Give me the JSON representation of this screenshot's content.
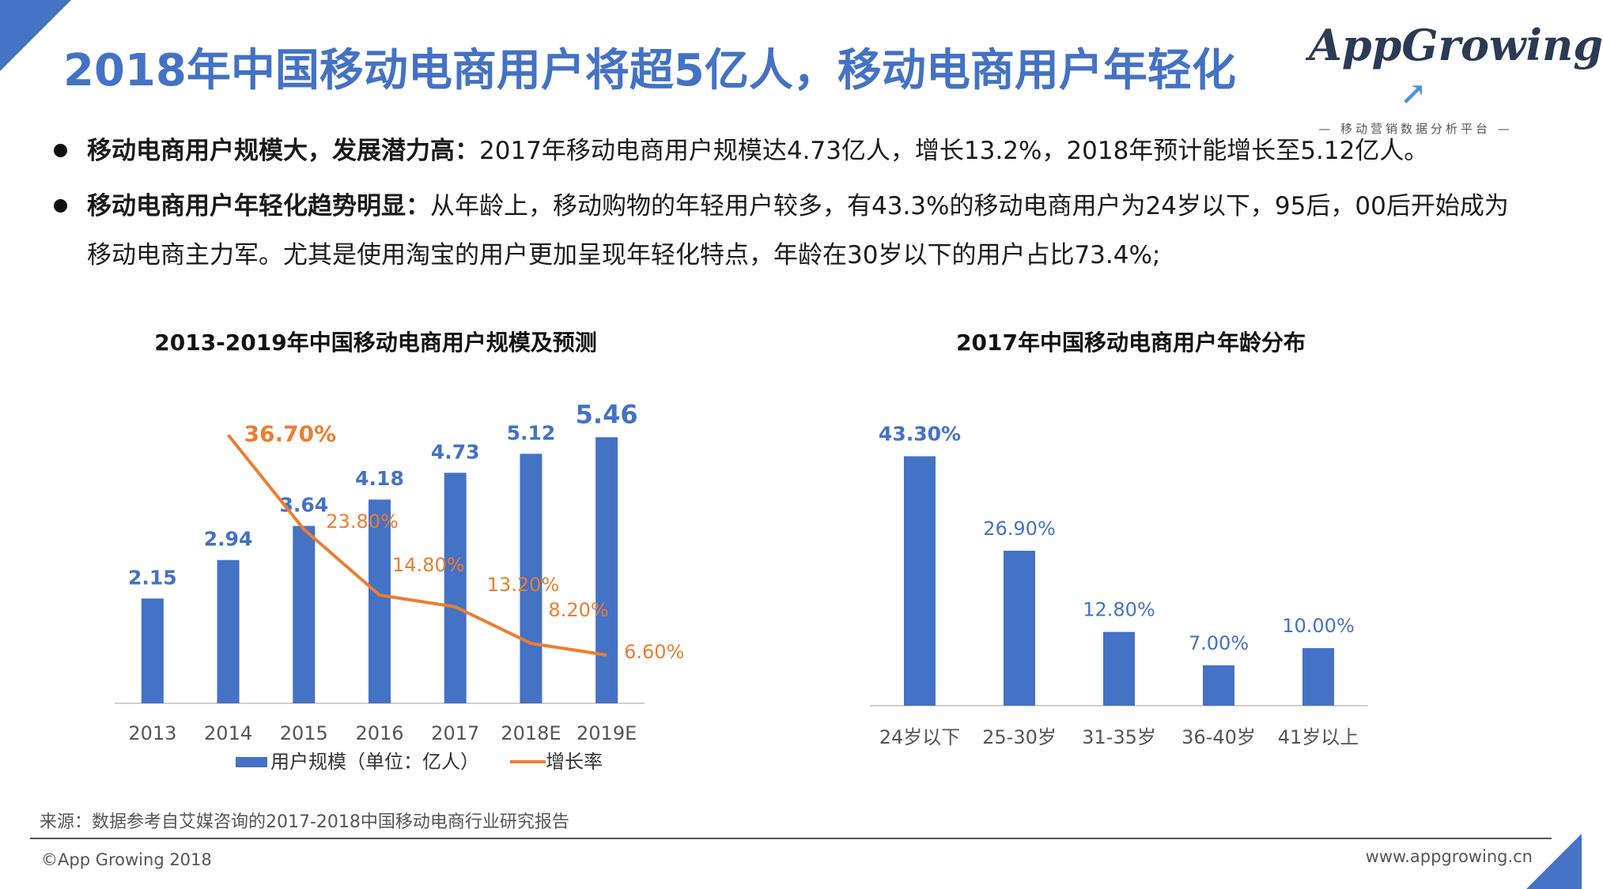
{
  "header": {
    "title": "2018年中国移动电商用户将超5亿人，移动电商用户年轻化",
    "logo_text": "AppGrowing",
    "logo_sub": "— 移动营销数据分析平台 —"
  },
  "bullets": [
    {
      "bold": "移动电商用户规模大，发展潜力高：",
      "text": "2017年移动电商用户规模达4.73亿人，增长13.2%，2018年预计能增长至5.12亿人。"
    },
    {
      "bold": "移动电商用户年轻化趋势明显：",
      "text": "从年龄上，移动购物的年轻用户较多，有43.3%的移动电商用户为24岁以下，95后，00后开始成为移动电商主力军。尤其是使用淘宝的用户更加呈现年轻化特点，年龄在30岁以下的用户占比73.4%;"
    }
  ],
  "chart_data": [
    {
      "type": "bar",
      "title": "2013-2019年中国移动电商用户规模及预测",
      "categories": [
        "2013",
        "2014",
        "2015",
        "2016",
        "2017",
        "2018E",
        "2019E"
      ],
      "series": [
        {
          "name": "用户规模（单位：亿人）",
          "type": "bar",
          "values": [
            2.15,
            2.94,
            3.64,
            4.18,
            4.73,
            5.12,
            5.46
          ],
          "labels": [
            "2.15",
            "2.94",
            "3.64",
            "4.18",
            "4.73",
            "5.12",
            "5.46"
          ],
          "color": "#4472c4"
        },
        {
          "name": "增长率",
          "type": "line",
          "values": [
            null,
            36.7,
            23.8,
            14.8,
            13.2,
            8.2,
            6.6
          ],
          "labels": [
            null,
            "36.70%",
            "23.80%",
            "14.80%",
            "13.20%",
            "8.20%",
            "6.60%"
          ],
          "color": "#ed7d31"
        }
      ],
      "ylim": [
        0,
        6
      ],
      "y2lim": [
        0,
        40
      ],
      "grid": false,
      "legend": "bottom"
    },
    {
      "type": "bar",
      "title": "2017年中国移动电商用户年龄分布",
      "categories": [
        "24岁以下",
        "25-30岁",
        "31-35岁",
        "36-40岁",
        "41岁以上"
      ],
      "values": [
        43.3,
        26.9,
        12.8,
        7.0,
        10.0
      ],
      "labels": [
        "43.30%",
        "26.90%",
        "12.80%",
        "7.00%",
        "10.00%"
      ],
      "ylim": [
        0,
        45
      ],
      "color": "#4472c4",
      "grid": false
    }
  ],
  "footer": {
    "source": "来源：数据参考自艾媒咨询的2017-2018中国移动电商行业研究报告",
    "copyright": "©App Growing 2018",
    "website": "www.appgrowing.cn"
  }
}
